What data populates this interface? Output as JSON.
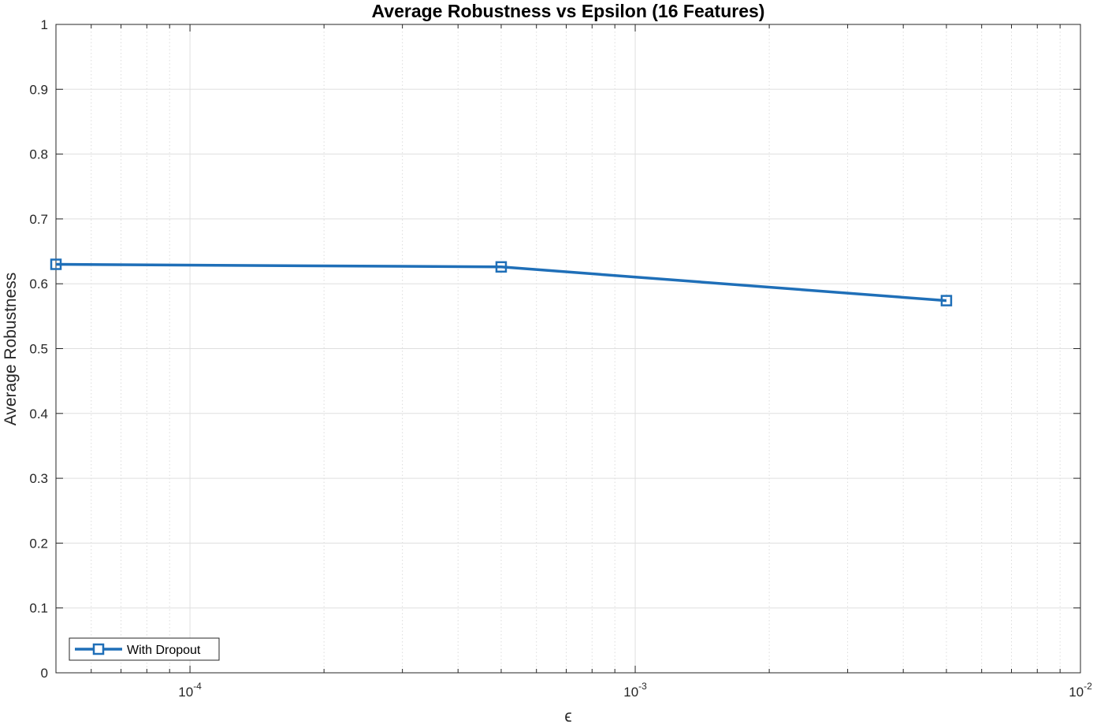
{
  "chart_data": {
    "type": "line",
    "title": "Average Robustness vs Epsilon (16 Features)",
    "xlabel": "ϵ",
    "ylabel": "Average Robustness",
    "xscale": "log",
    "xlim": [
      5e-05,
      0.01
    ],
    "ylim": [
      0,
      1
    ],
    "x_ticks": [
      {
        "base": "10",
        "exp": "-4",
        "value": 0.0001
      },
      {
        "base": "10",
        "exp": "-3",
        "value": 0.001
      },
      {
        "base": "10",
        "exp": "-2",
        "value": 0.01
      }
    ],
    "y_ticks": [
      "0",
      "0.1",
      "0.2",
      "0.3",
      "0.4",
      "0.5",
      "0.6",
      "0.7",
      "0.8",
      "0.9",
      "1"
    ],
    "grid": true,
    "minor_grid": true,
    "legend_position": "bottom-left",
    "series": [
      {
        "name": "With Dropout",
        "color": "#1f6fb8",
        "marker": "square",
        "x": [
          5e-05,
          0.0005,
          0.005
        ],
        "y": [
          0.63,
          0.626,
          0.574
        ]
      }
    ]
  },
  "colors": {
    "axis": "#262626",
    "major_grid": "#dfdfdf",
    "minor_grid": "#dcdcdc"
  }
}
